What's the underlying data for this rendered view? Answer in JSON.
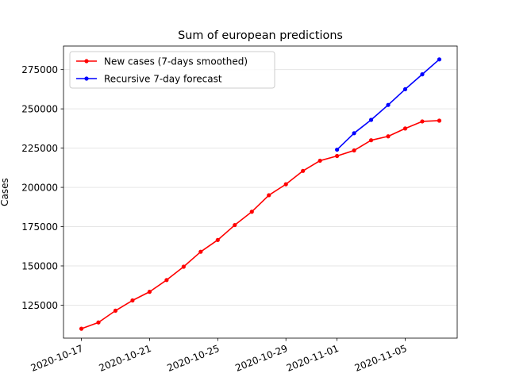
{
  "chart_data": {
    "type": "line",
    "title": "Sum of european predictions",
    "xlabel": "",
    "ylabel": "Cases",
    "x_ticks": [
      "2020-10-17",
      "2020-10-21",
      "2020-10-25",
      "2020-10-29",
      "2020-11-01",
      "2020-11-05"
    ],
    "y_ticks": [
      125000,
      150000,
      175000,
      200000,
      225000,
      250000,
      275000
    ],
    "y_tick_labels": [
      "125000",
      "150000",
      "175000",
      "200000",
      "225000",
      "250000",
      "275000"
    ],
    "ylim": [
      104000,
      290000
    ],
    "grid": "horizontal",
    "legend_position": "top-left",
    "series": [
      {
        "name": "New cases (7-days smoothed)",
        "color": "#ff0000",
        "points": [
          {
            "x": "2020-10-17",
            "y": 110000
          },
          {
            "x": "2020-10-18",
            "y": 114000
          },
          {
            "x": "2020-10-19",
            "y": 121500
          },
          {
            "x": "2020-10-20",
            "y": 128000
          },
          {
            "x": "2020-10-21",
            "y": 133500
          },
          {
            "x": "2020-10-22",
            "y": 141000
          },
          {
            "x": "2020-10-23",
            "y": 149500
          },
          {
            "x": "2020-10-24",
            "y": 159000
          },
          {
            "x": "2020-10-25",
            "y": 166500
          },
          {
            "x": "2020-10-26",
            "y": 176000
          },
          {
            "x": "2020-10-27",
            "y": 184500
          },
          {
            "x": "2020-10-28",
            "y": 195000
          },
          {
            "x": "2020-10-29",
            "y": 202000
          },
          {
            "x": "2020-10-30",
            "y": 210500
          },
          {
            "x": "2020-10-31",
            "y": 217000
          },
          {
            "x": "2020-11-01",
            "y": 220000
          },
          {
            "x": "2020-11-02",
            "y": 223500
          },
          {
            "x": "2020-11-03",
            "y": 230000
          },
          {
            "x": "2020-11-04",
            "y": 232500
          },
          {
            "x": "2020-11-05",
            "y": 237500
          },
          {
            "x": "2020-11-06",
            "y": 242000
          },
          {
            "x": "2020-11-07",
            "y": 242500
          }
        ]
      },
      {
        "name": "Recursive 7-day forecast",
        "color": "#0000ff",
        "points": [
          {
            "x": "2020-11-01",
            "y": 224000
          },
          {
            "x": "2020-11-02",
            "y": 234500
          },
          {
            "x": "2020-11-03",
            "y": 243000
          },
          {
            "x": "2020-11-04",
            "y": 252500
          },
          {
            "x": "2020-11-05",
            "y": 262500
          },
          {
            "x": "2020-11-06",
            "y": 272000
          },
          {
            "x": "2020-11-07",
            "y": 281500
          }
        ]
      }
    ]
  }
}
